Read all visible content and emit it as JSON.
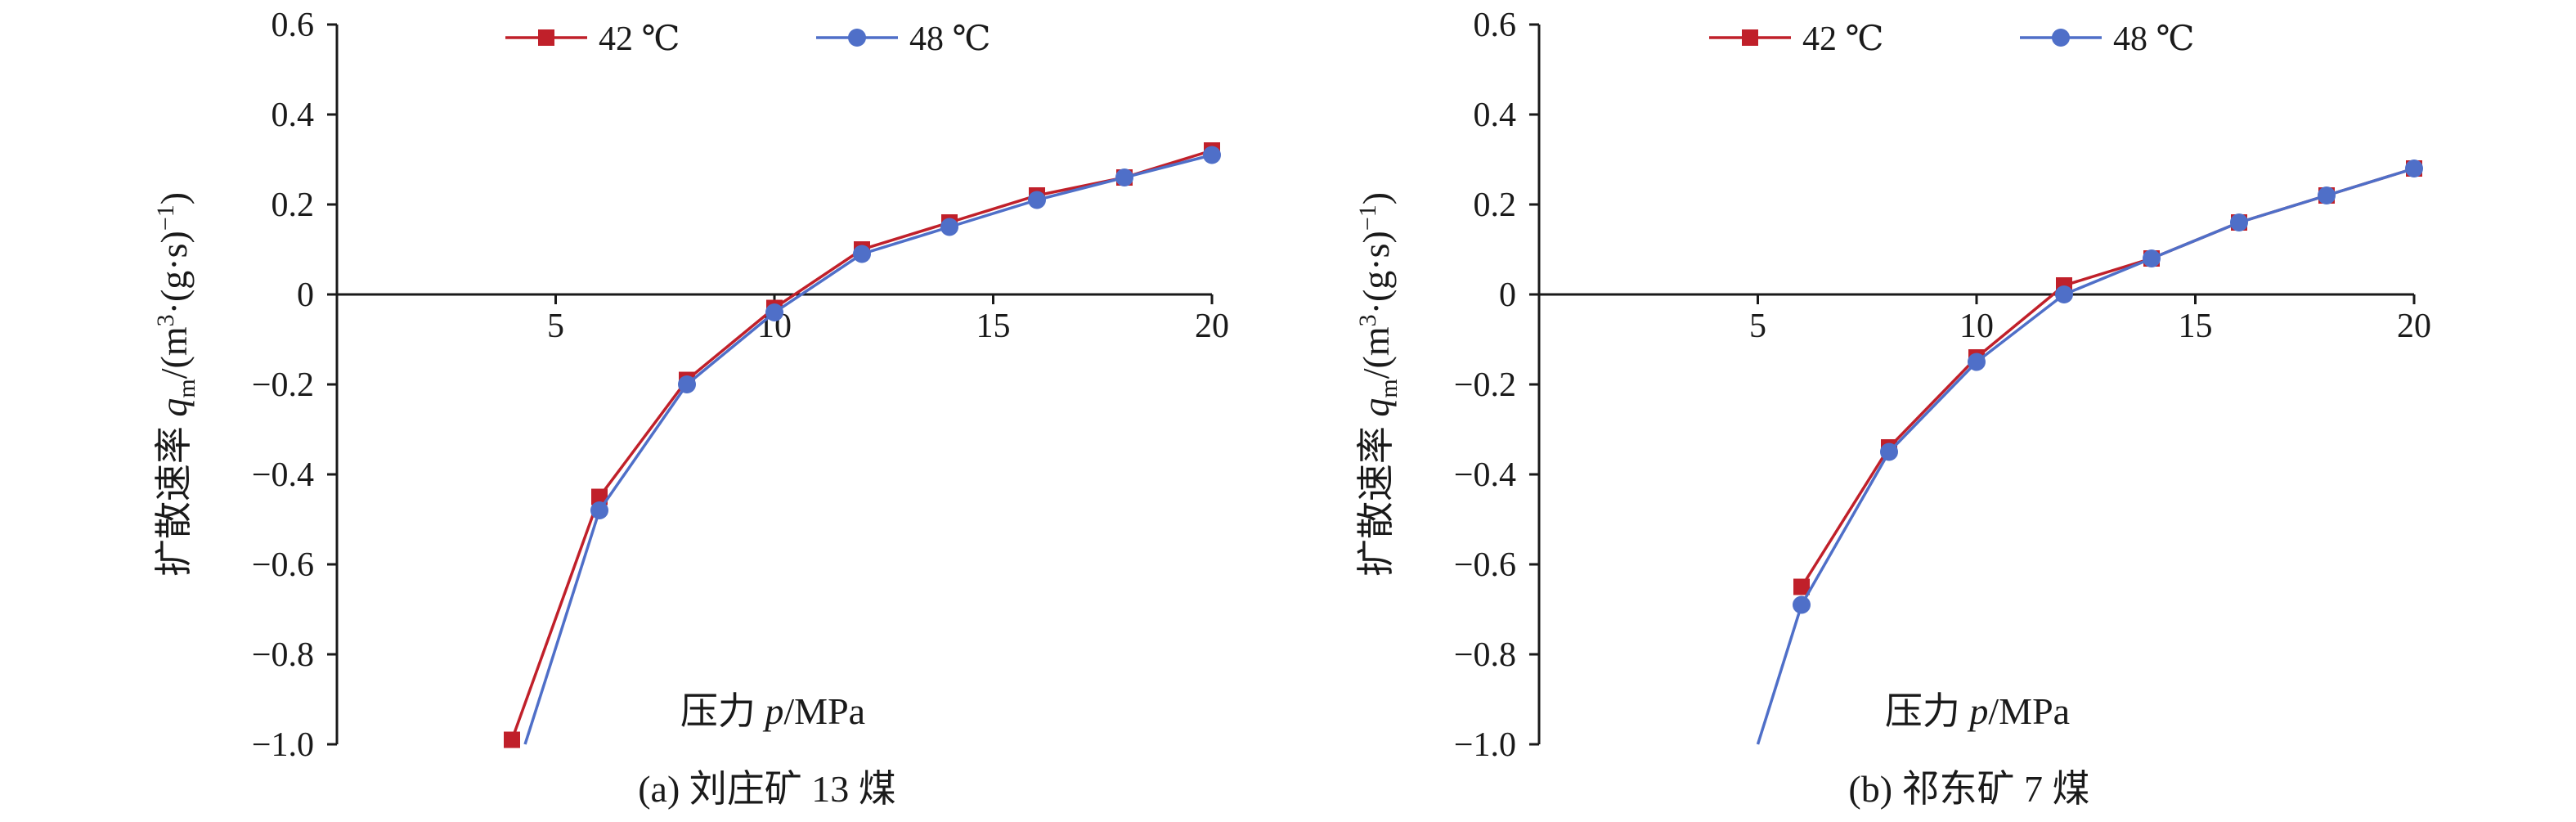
{
  "figure": {
    "colors": {
      "red": "#c0202a",
      "blue": "#4f6fc8",
      "axis": "#1a1a1a"
    }
  },
  "chart_data": [
    {
      "type": "line",
      "caption": "(a) 刘庄矿 13 煤",
      "xlabel_prefix": "压力 ",
      "xlabel_var": "p",
      "xlabel_unit": "/MPa",
      "ylabel_prefix": "扩散速率 ",
      "ylabel_var": "q",
      "ylabel_sub": "m",
      "ylabel_unit_a": "/(m",
      "ylabel_sup": "3",
      "ylabel_unit_b": "·(g·s)",
      "ylabel_sup2": "−1",
      "ylabel_unit_c": ")",
      "xlim": [
        0,
        20
      ],
      "ylim": [
        -1.0,
        0.6
      ],
      "xticks": [
        "5",
        "10",
        "15",
        "20"
      ],
      "xtick_values": [
        5,
        10,
        15,
        20
      ],
      "yticks": [
        "0.6",
        "0.4",
        "0.2",
        "0",
        "−0.2",
        "−0.4",
        "−0.6",
        "−0.8",
        "−1.0"
      ],
      "ytick_values": [
        0.6,
        0.4,
        0.2,
        0,
        -0.2,
        -0.4,
        -0.6,
        -0.8,
        -1.0
      ],
      "legend_position": "top",
      "series": [
        {
          "name": "42 ℃",
          "marker": "square",
          "color": "#c0202a",
          "x": [
            4,
            6,
            8,
            10,
            12,
            14,
            16,
            18,
            20
          ],
          "y": [
            -0.99,
            -0.45,
            -0.19,
            -0.03,
            0.1,
            0.16,
            0.22,
            0.26,
            0.32
          ]
        },
        {
          "name": "48 ℃",
          "marker": "circle",
          "color": "#4f6fc8",
          "x": [
            6,
            8,
            10,
            12,
            14,
            16,
            18,
            20
          ],
          "y": [
            -0.48,
            -0.2,
            -0.04,
            0.09,
            0.15,
            0.21,
            0.26,
            0.31
          ],
          "line_start": [
            4.3,
            -1.0
          ]
        }
      ]
    },
    {
      "type": "line",
      "caption": "(b) 祁东矿 7 煤",
      "xlabel_prefix": "压力 ",
      "xlabel_var": "p",
      "xlabel_unit": "/MPa",
      "ylabel_prefix": "扩散速率 ",
      "ylabel_var": "q",
      "ylabel_sub": "m",
      "ylabel_unit_a": "/(m",
      "ylabel_sup": "3",
      "ylabel_unit_b": "·(g·s)",
      "ylabel_sup2": "−1",
      "ylabel_unit_c": ")",
      "xlim": [
        0,
        20
      ],
      "ylim": [
        -1.0,
        0.6
      ],
      "xticks": [
        "5",
        "10",
        "15",
        "20"
      ],
      "xtick_values": [
        5,
        10,
        15,
        20
      ],
      "yticks": [
        "0.6",
        "0.4",
        "0.2",
        "0",
        "−0.2",
        "−0.4",
        "−0.6",
        "−0.8",
        "−1.0"
      ],
      "ytick_values": [
        0.6,
        0.4,
        0.2,
        0,
        -0.2,
        -0.4,
        -0.6,
        -0.8,
        -1.0
      ],
      "legend_position": "top",
      "series": [
        {
          "name": "42 ℃",
          "marker": "square",
          "color": "#c0202a",
          "x": [
            6,
            8,
            10,
            12,
            14,
            16,
            18,
            20
          ],
          "y": [
            -0.65,
            -0.34,
            -0.14,
            0.02,
            0.08,
            0.16,
            0.22,
            0.28
          ]
        },
        {
          "name": "48 ℃",
          "marker": "circle",
          "color": "#4f6fc8",
          "x": [
            6,
            8,
            10,
            12,
            14,
            16,
            18,
            20
          ],
          "y": [
            -0.69,
            -0.35,
            -0.15,
            0.0,
            0.08,
            0.16,
            0.22,
            0.28
          ],
          "line_start": [
            5.0,
            -1.0
          ]
        }
      ]
    }
  ]
}
